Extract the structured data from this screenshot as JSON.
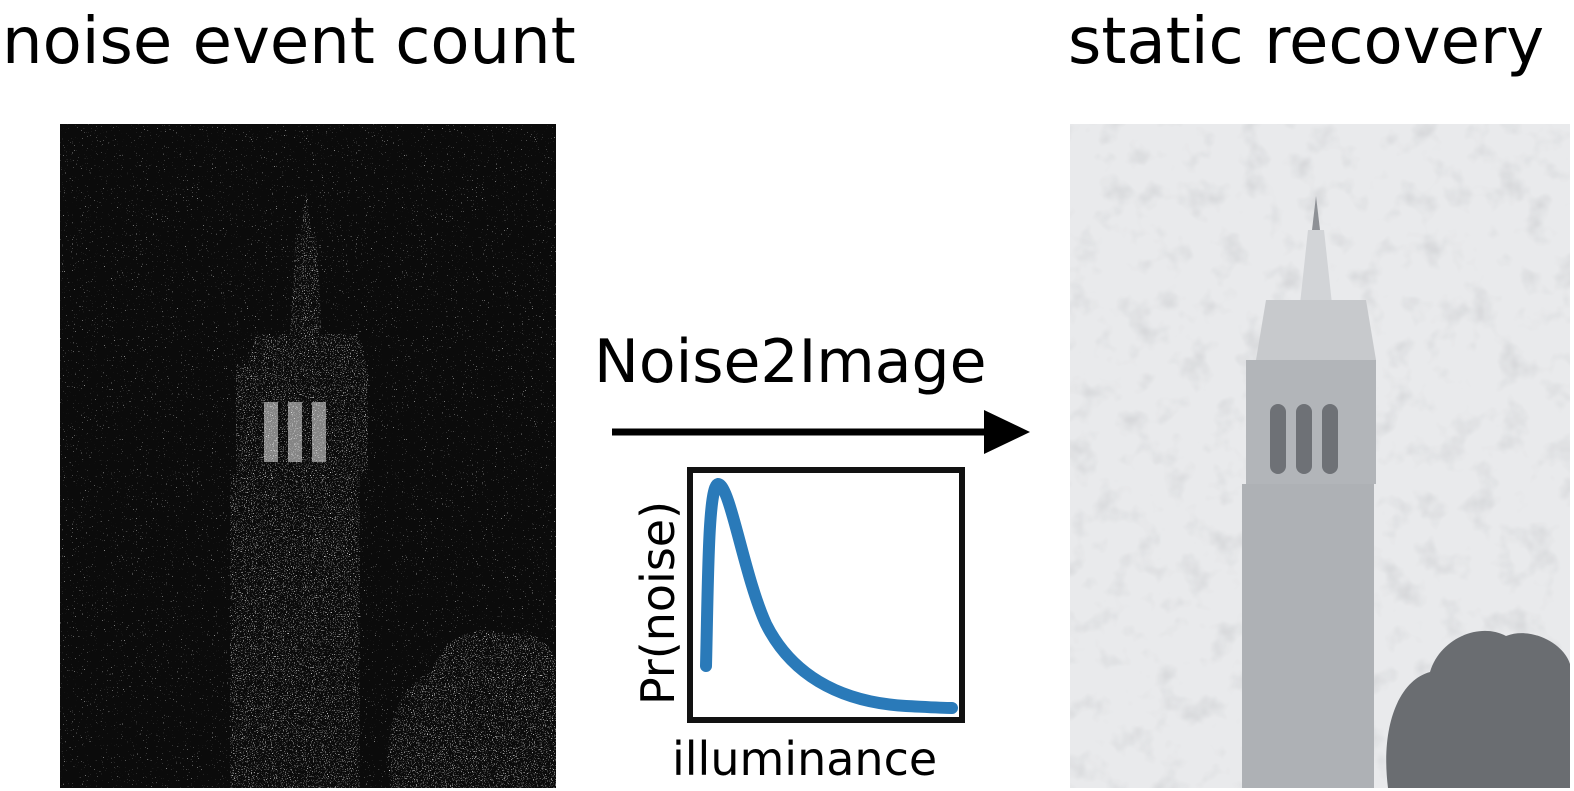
{
  "left_panel": {
    "title": "noise event count"
  },
  "right_panel": {
    "title": "static recovery"
  },
  "method": {
    "name": "Noise2Image"
  },
  "inset_plot": {
    "xlabel": "illuminance",
    "ylabel": "Pr(noise)",
    "line_color": "#2a7ab9"
  }
}
